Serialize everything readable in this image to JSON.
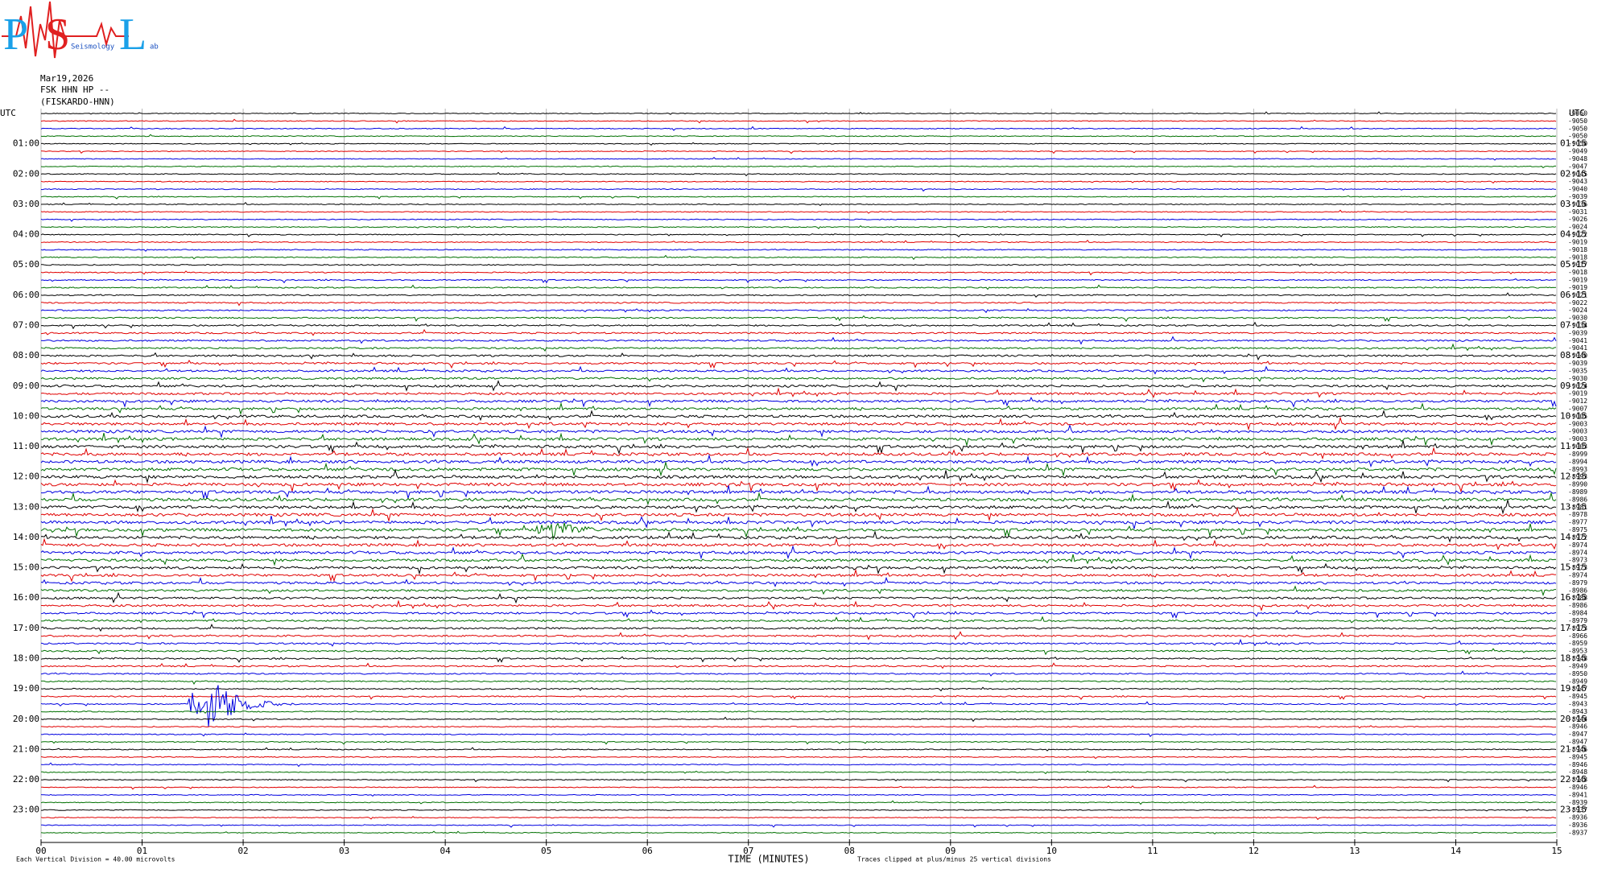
{
  "logo": {
    "p": "P",
    "s": "S",
    "l": "L",
    "word1": "Seismology",
    "word2": "ab"
  },
  "header": {
    "date": "Mar19,2026",
    "station": "FSK HHN HP --",
    "site": "(FISKARDO-HNN)"
  },
  "left_labels": [
    "UTC",
    "01:00",
    "02:00",
    "03:00",
    "04:00",
    "05:00",
    "06:00",
    "07:00",
    "08:00",
    "09:00",
    "10:00",
    "11:00",
    "12:00",
    "13:00",
    "14:00",
    "15:00",
    "16:00",
    "17:00",
    "18:00",
    "19:00",
    "20:00",
    "21:00",
    "22:00",
    "23:00"
  ],
  "right_labels": [
    "UTC",
    "01:15",
    "02:15",
    "03:15",
    "04:15",
    "05:15",
    "06:15",
    "07:15",
    "08:15",
    "09:15",
    "10:15",
    "11:15",
    "12:15",
    "13:15",
    "14:15",
    "15:15",
    "16:15",
    "17:15",
    "18:15",
    "19:15",
    "20:15",
    "21:15",
    "22:15",
    "23:15"
  ],
  "offsets": [
    -9050,
    -9050,
    -9050,
    -9050,
    -9050,
    -9049,
    -9048,
    -9047,
    -9045,
    -9043,
    -9040,
    -9039,
    -9036,
    -9031,
    -9026,
    -9024,
    -9022,
    -9019,
    -9018,
    -9018,
    -9017,
    -9018,
    -9019,
    -9019,
    -9021,
    -9022,
    -9024,
    -9030,
    -9034,
    -9039,
    -9041,
    -9041,
    -9040,
    -9039,
    -9035,
    -9030,
    -9024,
    -9019,
    -9012,
    -9007,
    -9005,
    -9003,
    -9003,
    -9003,
    -9003,
    -8999,
    -8994,
    -8993,
    -8993,
    -8990,
    -8989,
    -8986,
    -8981,
    -8978,
    -8977,
    -8975,
    -8972,
    -8974,
    -8974,
    -8973,
    -8973,
    -8974,
    -8979,
    -8986,
    -8988,
    -8986,
    -8984,
    -8979,
    -8973,
    -8966,
    -8959,
    -8953,
    -8948,
    -8949,
    -8950,
    -8949,
    -8947,
    -8945,
    -8943,
    -8943,
    -8944,
    -8946,
    -8947,
    -8947,
    -8946,
    -8945,
    -8946,
    -8948,
    -8948,
    -8946,
    -8941,
    -8939,
    -8937,
    -8936,
    -8936,
    -8937
  ],
  "x_labels": [
    "00",
    "01",
    "02",
    "03",
    "04",
    "05",
    "06",
    "07",
    "08",
    "09",
    "10",
    "11",
    "12",
    "13",
    "14",
    "15"
  ],
  "x_title": "TIME (MINUTES)",
  "footer": {
    "scale": "Each Vertical Division =   40.00 microvolts",
    "clip": "Traces clipped at plus/minus 25 vertical divisions"
  }
}
